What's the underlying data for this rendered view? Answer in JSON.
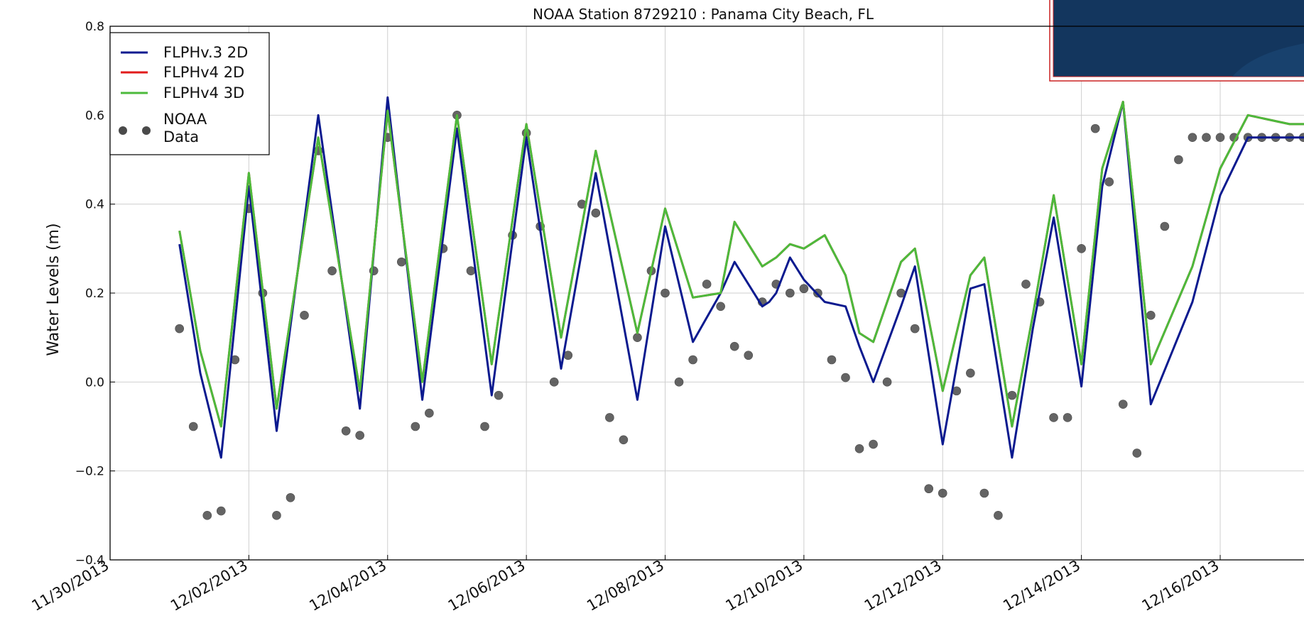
{
  "chart_data": {
    "type": "line",
    "title": "NOAA Station 8729210 : Panama City Beach, FL",
    "xlabel": "",
    "ylabel": "Water Levels (m)",
    "xlim": [
      "2013-11-30",
      "2013-12-17.3"
    ],
    "ylim": [
      -0.4,
      0.8
    ],
    "yticks": [
      -0.4,
      -0.2,
      0.0,
      0.2,
      0.4,
      0.6,
      0.8
    ],
    "ytick_labels": [
      "−0.4",
      "−0.2",
      "0.0",
      "0.2",
      "0.4",
      "0.6",
      "0.8"
    ],
    "xticks": [
      "2013-11-30",
      "2013-12-02",
      "2013-12-04",
      "2013-12-06",
      "2013-12-08",
      "2013-12-10",
      "2013-12-12",
      "2013-12-14",
      "2013-12-16"
    ],
    "xtick_labels": [
      "11/30/2013",
      "12/02/2013",
      "12/04/2013",
      "12/06/2013",
      "12/08/2013",
      "12/10/2013",
      "12/12/2013",
      "12/14/2013",
      "12/16/2013"
    ],
    "grid": true,
    "legend_position": "top-left",
    "series": [
      {
        "name": "FLPHv.3 2D",
        "color": "#0b1a8f",
        "kind": "line",
        "x": [
          "2013-12-01T00:00",
          "2013-12-01T07:12",
          "2013-12-01T14:24",
          "2013-12-02T00:00",
          "2013-12-02T09:36",
          "2013-12-03T00:00",
          "2013-12-03T14:24",
          "2013-12-04T00:00",
          "2013-12-04T12:00",
          "2013-12-05T00:00",
          "2013-12-05T12:00",
          "2013-12-06T00:00",
          "2013-12-06T12:00",
          "2013-12-07T00:00",
          "2013-12-07T14:24",
          "2013-12-08T00:00",
          "2013-12-08T09:36",
          "2013-12-08T19:12",
          "2013-12-09T00:00",
          "2013-12-09T09:36",
          "2013-12-09T12:00",
          "2013-12-09T14:24",
          "2013-12-09T19:12",
          "2013-12-10T00:00",
          "2013-12-10T07:12",
          "2013-12-10T14:24",
          "2013-12-10T19:12",
          "2013-12-11T00:00",
          "2013-12-11T09:36",
          "2013-12-11T14:24",
          "2013-12-12T00:00",
          "2013-12-12T09:36",
          "2013-12-12T14:24",
          "2013-12-13T00:00",
          "2013-12-13T07:12",
          "2013-12-13T14:24",
          "2013-12-14T00:00",
          "2013-12-14T07:12",
          "2013-12-14T14:24",
          "2013-12-15T00:00",
          "2013-12-15T14:24",
          "2013-12-16T00:00",
          "2013-12-16T09:36",
          "2013-12-17T00:00",
          "2013-12-17T07:12"
        ],
        "y": [
          0.31,
          0.02,
          -0.17,
          0.44,
          -0.11,
          0.6,
          -0.06,
          0.64,
          -0.04,
          0.57,
          -0.03,
          0.55,
          0.03,
          0.47,
          -0.04,
          0.35,
          0.09,
          0.2,
          0.27,
          0.17,
          0.18,
          0.2,
          0.28,
          0.23,
          0.18,
          0.17,
          0.08,
          0.0,
          0.17,
          0.26,
          -0.14,
          0.21,
          0.22,
          -0.17,
          0.12,
          0.37,
          -0.01,
          0.44,
          0.63,
          -0.05,
          0.18,
          0.42,
          0.55,
          0.55,
          0.55
        ]
      },
      {
        "name": "FLPHv4 2D",
        "color": "#e11b1b",
        "kind": "line",
        "x": [
          "2013-12-01T00:00",
          "2013-12-01T07:12",
          "2013-12-01T14:24",
          "2013-12-02T00:00",
          "2013-12-02T09:36",
          "2013-12-03T00:00",
          "2013-12-03T14:24",
          "2013-12-04T00:00",
          "2013-12-04T12:00",
          "2013-12-05T00:00",
          "2013-12-05T12:00",
          "2013-12-06T00:00",
          "2013-12-06T12:00",
          "2013-12-07T00:00",
          "2013-12-07T14:24",
          "2013-12-08T00:00",
          "2013-12-08T09:36",
          "2013-12-08T19:12",
          "2013-12-09T00:00",
          "2013-12-09T09:36",
          "2013-12-09T12:00",
          "2013-12-09T14:24",
          "2013-12-09T19:12",
          "2013-12-10T00:00",
          "2013-12-10T07:12",
          "2013-12-10T14:24",
          "2013-12-10T19:12",
          "2013-12-11T00:00",
          "2013-12-11T09:36",
          "2013-12-11T14:24",
          "2013-12-12T00:00",
          "2013-12-12T09:36",
          "2013-12-12T14:24",
          "2013-12-13T00:00",
          "2013-12-13T07:12",
          "2013-12-13T14:24",
          "2013-12-14T00:00",
          "2013-12-14T07:12",
          "2013-12-14T14:24",
          "2013-12-15T00:00",
          "2013-12-15T14:24",
          "2013-12-16T00:00",
          "2013-12-16T09:36",
          "2013-12-17T00:00",
          "2013-12-17T07:12"
        ],
        "y": [
          0.34,
          0.07,
          -0.1,
          0.47,
          -0.06,
          0.55,
          -0.02,
          0.61,
          0.0,
          0.6,
          0.04,
          0.58,
          0.1,
          0.52,
          0.11,
          0.39,
          0.19,
          0.2,
          0.36,
          0.26,
          0.27,
          0.28,
          0.31,
          0.3,
          0.33,
          0.24,
          0.11,
          0.09,
          0.27,
          0.3,
          -0.02,
          0.24,
          0.28,
          -0.1,
          0.15,
          0.42,
          0.04,
          0.48,
          0.63,
          0.04,
          0.26,
          0.48,
          0.6,
          0.58,
          0.58
        ]
      },
      {
        "name": "FLPHv4 3D",
        "color": "#4cba3c",
        "kind": "line",
        "x": [
          "2013-12-01T00:00",
          "2013-12-01T07:12",
          "2013-12-01T14:24",
          "2013-12-02T00:00",
          "2013-12-02T09:36",
          "2013-12-03T00:00",
          "2013-12-03T14:24",
          "2013-12-04T00:00",
          "2013-12-04T12:00",
          "2013-12-05T00:00",
          "2013-12-05T12:00",
          "2013-12-06T00:00",
          "2013-12-06T12:00",
          "2013-12-07T00:00",
          "2013-12-07T14:24",
          "2013-12-08T00:00",
          "2013-12-08T09:36",
          "2013-12-08T19:12",
          "2013-12-09T00:00",
          "2013-12-09T09:36",
          "2013-12-09T12:00",
          "2013-12-09T14:24",
          "2013-12-09T19:12",
          "2013-12-10T00:00",
          "2013-12-10T07:12",
          "2013-12-10T14:24",
          "2013-12-10T19:12",
          "2013-12-11T00:00",
          "2013-12-11T09:36",
          "2013-12-11T14:24",
          "2013-12-12T00:00",
          "2013-12-12T09:36",
          "2013-12-12T14:24",
          "2013-12-13T00:00",
          "2013-12-13T07:12",
          "2013-12-13T14:24",
          "2013-12-14T00:00",
          "2013-12-14T07:12",
          "2013-12-14T14:24",
          "2013-12-15T00:00",
          "2013-12-15T14:24",
          "2013-12-16T00:00",
          "2013-12-16T09:36",
          "2013-12-17T00:00",
          "2013-12-17T07:12"
        ],
        "y": [
          0.34,
          0.07,
          -0.1,
          0.47,
          -0.06,
          0.55,
          -0.02,
          0.61,
          0.0,
          0.6,
          0.04,
          0.58,
          0.1,
          0.52,
          0.11,
          0.39,
          0.19,
          0.2,
          0.36,
          0.26,
          0.27,
          0.28,
          0.31,
          0.3,
          0.33,
          0.24,
          0.11,
          0.09,
          0.27,
          0.3,
          -0.02,
          0.24,
          0.28,
          -0.1,
          0.15,
          0.42,
          0.04,
          0.48,
          0.63,
          0.04,
          0.26,
          0.48,
          0.6,
          0.58,
          0.58
        ]
      },
      {
        "name": "NOAA Data",
        "color": "#4a4a4a",
        "kind": "scatter",
        "x": [
          "2013-12-01T00:00",
          "2013-12-01T04:48",
          "2013-12-01T09:36",
          "2013-12-01T14:24",
          "2013-12-01T19:12",
          "2013-12-02T00:00",
          "2013-12-02T04:48",
          "2013-12-02T09:36",
          "2013-12-02T14:24",
          "2013-12-02T19:12",
          "2013-12-03T00:00",
          "2013-12-03T04:48",
          "2013-12-03T09:36",
          "2013-12-03T14:24",
          "2013-12-03T19:12",
          "2013-12-04T00:00",
          "2013-12-04T04:48",
          "2013-12-04T09:36",
          "2013-12-04T14:24",
          "2013-12-04T19:12",
          "2013-12-05T00:00",
          "2013-12-05T04:48",
          "2013-12-05T09:36",
          "2013-12-05T14:24",
          "2013-12-05T19:12",
          "2013-12-06T00:00",
          "2013-12-06T04:48",
          "2013-12-06T09:36",
          "2013-12-06T14:24",
          "2013-12-06T19:12",
          "2013-12-07T00:00",
          "2013-12-07T04:48",
          "2013-12-07T09:36",
          "2013-12-07T14:24",
          "2013-12-07T19:12",
          "2013-12-08T00:00",
          "2013-12-08T04:48",
          "2013-12-08T09:36",
          "2013-12-08T14:24",
          "2013-12-08T19:12",
          "2013-12-09T00:00",
          "2013-12-09T04:48",
          "2013-12-09T09:36",
          "2013-12-09T14:24",
          "2013-12-09T19:12",
          "2013-12-10T00:00",
          "2013-12-10T04:48",
          "2013-12-10T09:36",
          "2013-12-10T14:24",
          "2013-12-10T19:12",
          "2013-12-11T00:00",
          "2013-12-11T04:48",
          "2013-12-11T09:36",
          "2013-12-11T14:24",
          "2013-12-11T19:12",
          "2013-12-12T00:00",
          "2013-12-12T04:48",
          "2013-12-12T09:36",
          "2013-12-12T14:24",
          "2013-12-12T19:12",
          "2013-12-13T00:00",
          "2013-12-13T04:48",
          "2013-12-13T09:36",
          "2013-12-13T14:24",
          "2013-12-13T19:12",
          "2013-12-14T00:00",
          "2013-12-14T04:48",
          "2013-12-14T09:36",
          "2013-12-14T14:24",
          "2013-12-14T19:12",
          "2013-12-15T00:00",
          "2013-12-15T04:48",
          "2013-12-15T09:36",
          "2013-12-15T14:24",
          "2013-12-15T19:12",
          "2013-12-16T00:00",
          "2013-12-16T04:48",
          "2013-12-16T09:36",
          "2013-12-16T14:24",
          "2013-12-16T19:12",
          "2013-12-17T00:00",
          "2013-12-17T04:48",
          "2013-12-17T09:36"
        ],
        "y": [
          0.12,
          -0.1,
          -0.3,
          -0.29,
          0.05,
          0.39,
          0.2,
          -0.3,
          -0.26,
          0.15,
          0.52,
          0.25,
          -0.11,
          -0.12,
          0.25,
          0.55,
          0.27,
          -0.1,
          -0.07,
          0.3,
          0.6,
          0.25,
          -0.1,
          -0.03,
          0.33,
          0.56,
          0.35,
          0.0,
          0.06,
          0.4,
          0.38,
          -0.08,
          -0.13,
          0.1,
          0.25,
          0.2,
          0.0,
          0.05,
          0.22,
          0.17,
          0.08,
          0.06,
          0.18,
          0.22,
          0.2,
          0.21,
          0.2,
          0.05,
          0.01,
          -0.15,
          -0.14,
          0.0,
          0.2,
          0.12,
          -0.24,
          -0.25,
          -0.02,
          0.02,
          -0.25,
          -0.3,
          -0.03,
          0.22,
          0.18,
          -0.08,
          -0.08,
          0.3,
          0.57,
          0.45,
          -0.05,
          -0.16,
          0.15,
          0.35,
          0.5,
          0.55,
          0.55,
          0.55,
          0.55,
          0.55,
          0.55,
          0.55,
          0.55,
          0.55,
          0.55
        ]
      }
    ]
  }
}
